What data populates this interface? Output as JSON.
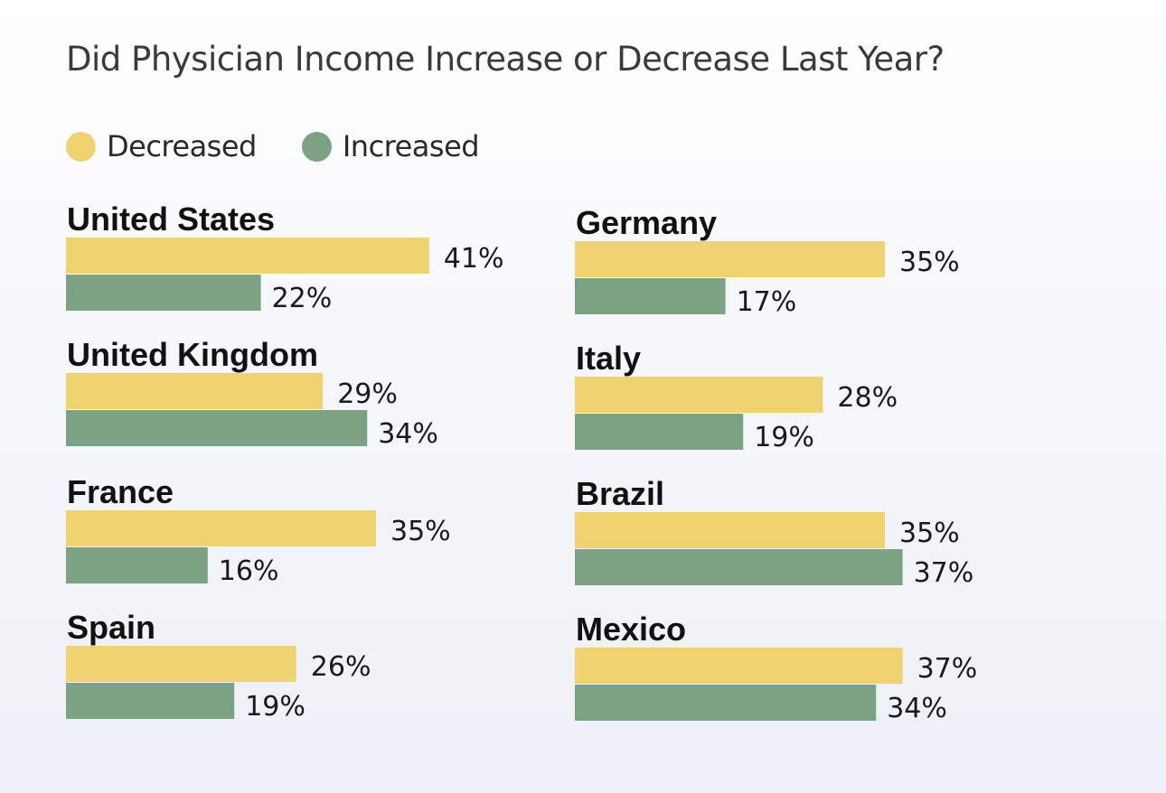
{
  "title": "Did Physician Income Increase or Decrease Last Year?",
  "legend": [
    {
      "label": "Decreased",
      "color": "#f0d371"
    },
    {
      "label": "Increased",
      "color": "#7ba383"
    }
  ],
  "chart_data": {
    "type": "bar",
    "orientation": "horizontal",
    "title": "Did Physician Income Increase or Decrease Last Year?",
    "series": [
      {
        "name": "Decreased",
        "color": "#f0d371"
      },
      {
        "name": "Increased",
        "color": "#7ba383"
      }
    ],
    "groups": [
      {
        "country": "United States",
        "decreased": 41,
        "increased": 22,
        "decreased_label": "41%",
        "increased_label": "22%"
      },
      {
        "country": "United Kingdom",
        "decreased": 29,
        "increased": 34,
        "decreased_label": "29%",
        "increased_label": "34%"
      },
      {
        "country": "France",
        "decreased": 35,
        "increased": 16,
        "decreased_label": "35%",
        "increased_label": "16%"
      },
      {
        "country": "Spain",
        "decreased": 26,
        "increased": 19,
        "decreased_label": "26%",
        "increased_label": "19%"
      },
      {
        "country": "Germany",
        "decreased": 35,
        "increased": 17,
        "decreased_label": "35%",
        "increased_label": "17%"
      },
      {
        "country": "Italy",
        "decreased": 28,
        "increased": 19,
        "decreased_label": "28%",
        "increased_label": "19%"
      },
      {
        "country": "Brazil",
        "decreased": 35,
        "increased": 37,
        "decreased_label": "35%",
        "increased_label": "37%"
      },
      {
        "country": "Mexico",
        "decreased": 37,
        "increased": 34,
        "decreased_label": "37%",
        "increased_label": "34%"
      }
    ],
    "grid": false,
    "legend_position": "top-left"
  }
}
